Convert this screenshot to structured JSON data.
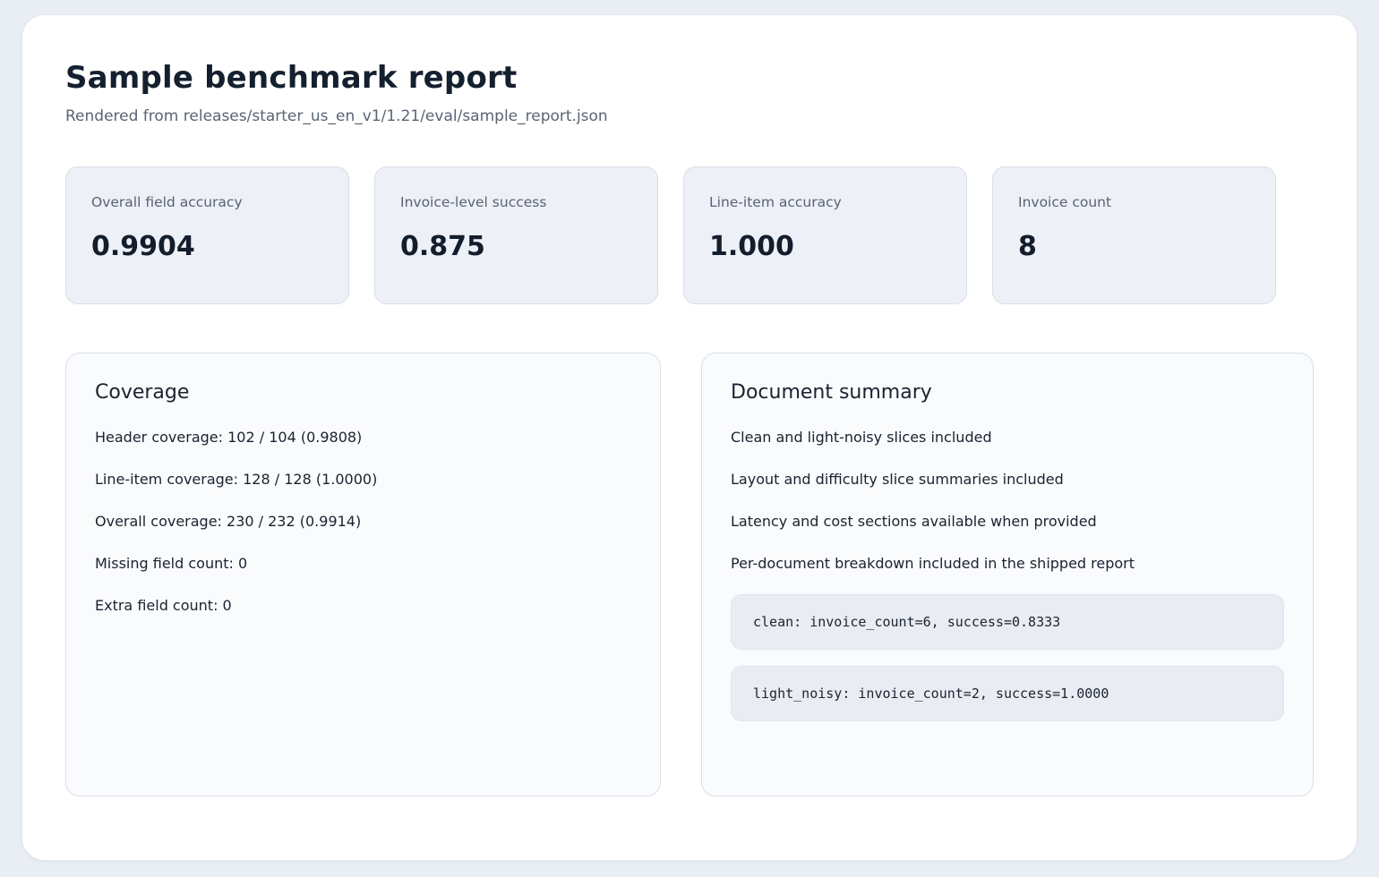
{
  "page": {
    "title": "Sample benchmark report",
    "subtitle": "Rendered from releases/starter_us_en_v1/1.21/eval/sample_report.json"
  },
  "metrics": [
    {
      "label": "Overall field accuracy",
      "value": "0.9904"
    },
    {
      "label": "Invoice-level success",
      "value": "0.875"
    },
    {
      "label": "Line-item accuracy",
      "value": "1.000"
    },
    {
      "label": "Invoice count",
      "value": "8"
    }
  ],
  "coverage": {
    "title": "Coverage",
    "lines": [
      "Header coverage: 102 / 104 (0.9808)",
      "Line-item coverage: 128 / 128 (1.0000)",
      "Overall coverage: 230 / 232 (0.9914)",
      "Missing field count: 0",
      "Extra field count: 0"
    ]
  },
  "document_summary": {
    "title": "Document summary",
    "lines": [
      "Clean and light-noisy slices included",
      "Layout and difficulty slice summaries included",
      "Latency and cost sections available when provided",
      "Per-document breakdown included in the shipped report"
    ],
    "code_blocks": [
      "clean: invoice_count=6, success=0.8333",
      "light_noisy: invoice_count=2, success=1.0000"
    ]
  },
  "colors": {
    "page_background": "#e9edf4",
    "card_background": "#ffffff",
    "metric_card_background": "#edf0f6",
    "panel_background": "#fafbfd",
    "code_block_background": "#e9ecf2",
    "heading_text": "#15202f",
    "muted_text": "#5a6474"
  }
}
